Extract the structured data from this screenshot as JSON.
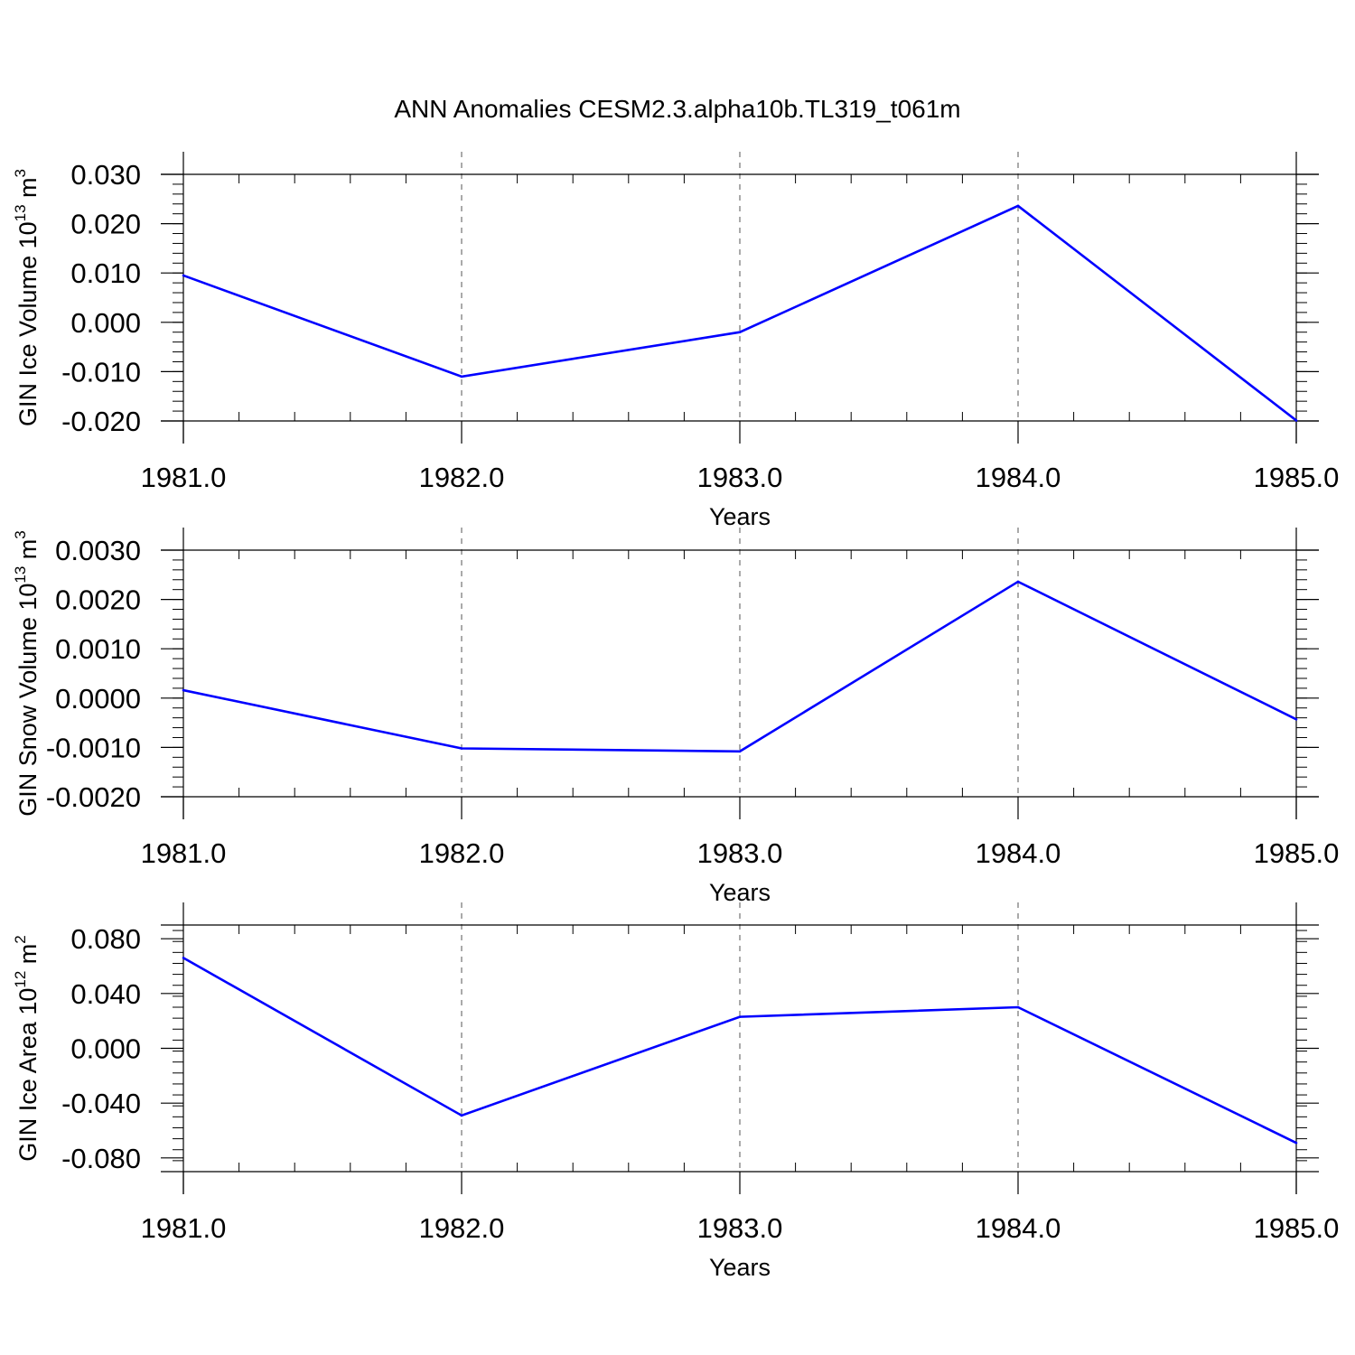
{
  "title": "ANN Anomalies CESM2.3.alpha10b.TL319_t061m",
  "line_color": "#0000ff",
  "chart_data": [
    {
      "type": "line",
      "xlabel": "Years",
      "ylabel": {
        "main": "GIN Ice Volume 10",
        "exponent": "13",
        "unit": " m",
        "unit_exponent": "3"
      },
      "xlim": [
        1981.0,
        1985.0
      ],
      "ylim": [
        -0.02,
        0.03
      ],
      "x_ticks": [
        "1981.0",
        "1982.0",
        "1983.0",
        "1984.0",
        "1985.0"
      ],
      "y_ticks": [
        "0.030",
        "0.020",
        "0.010",
        "0.000",
        "-0.010",
        "-0.020"
      ],
      "x": [
        1981,
        1982,
        1983,
        1984,
        1985
      ],
      "values": [
        0.0095,
        -0.011,
        -0.002,
        0.0236,
        -0.0199
      ]
    },
    {
      "type": "line",
      "xlabel": "Years",
      "ylabel": {
        "main": "GIN Snow Volume 10",
        "exponent": "13",
        "unit": " m",
        "unit_exponent": "3"
      },
      "xlim": [
        1981.0,
        1985.0
      ],
      "ylim": [
        -0.002,
        0.003
      ],
      "x_ticks": [
        "1981.0",
        "1982.0",
        "1983.0",
        "1984.0",
        "1985.0"
      ],
      "y_ticks": [
        "0.0030",
        "0.0020",
        "0.0010",
        "0.0000",
        "-0.0010",
        "-0.0020"
      ],
      "x": [
        1981,
        1982,
        1983,
        1984,
        1985
      ],
      "values": [
        0.00016,
        -0.00102,
        -0.00108,
        0.00236,
        -0.00043
      ]
    },
    {
      "type": "line",
      "xlabel": "Years",
      "ylabel": {
        "main": "GIN Ice Area 10",
        "exponent": "12",
        "unit": " m",
        "unit_exponent": "2"
      },
      "xlim": [
        1981.0,
        1985.0
      ],
      "ylim": [
        -0.09,
        0.09
      ],
      "x_ticks": [
        "1981.0",
        "1982.0",
        "1983.0",
        "1984.0",
        "1985.0"
      ],
      "y_ticks": [
        "0.080",
        "0.040",
        "0.000",
        "-0.040",
        "-0.080"
      ],
      "x": [
        1981,
        1982,
        1983,
        1984,
        1985
      ],
      "values": [
        0.066,
        -0.049,
        0.023,
        0.03,
        -0.069
      ]
    }
  ]
}
